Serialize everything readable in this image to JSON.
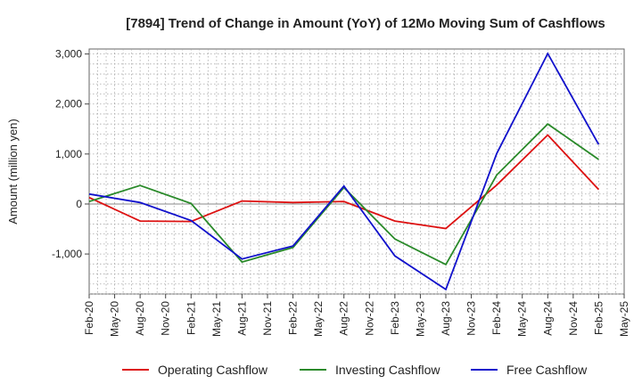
{
  "chart_data": {
    "type": "line",
    "title": "[7894]  Trend of Change in Amount (YoY) of 12Mo Moving Sum of Cashflows",
    "ylabel": "Amount (million yen)",
    "xlabel": "",
    "ylim": [
      -1800,
      3100
    ],
    "yticks": [
      3000,
      2000,
      1000,
      0,
      -1000
    ],
    "ytick_labels": [
      "3,000",
      "2,000",
      "1,000",
      "0",
      "-1,000"
    ],
    "categories": [
      "Feb-20",
      "May-20",
      "Aug-20",
      "Nov-20",
      "Feb-21",
      "May-21",
      "Aug-21",
      "Nov-21",
      "Feb-22",
      "May-22",
      "Aug-22",
      "Nov-22",
      "Feb-23",
      "May-23",
      "Aug-23",
      "Nov-23",
      "Feb-24",
      "May-24",
      "Aug-24",
      "Nov-24",
      "Feb-25",
      "May-25"
    ],
    "grid": true,
    "legend_position": "bottom",
    "series": [
      {
        "name": "Operating Cashflow",
        "color": "#dd1111",
        "values": [
          130,
          null,
          -340,
          null,
          -350,
          null,
          60,
          null,
          30,
          null,
          50,
          null,
          -340,
          null,
          -490,
          null,
          380,
          null,
          1380,
          null,
          290,
          null
        ]
      },
      {
        "name": "Investing Cashflow",
        "color": "#2a8a2a",
        "values": [
          50,
          null,
          370,
          null,
          10,
          null,
          -1160,
          null,
          -870,
          null,
          330,
          null,
          -700,
          null,
          -1210,
          null,
          580,
          null,
          1600,
          null,
          890,
          null
        ]
      },
      {
        "name": "Free Cashflow",
        "color": "#1111cc",
        "values": [
          200,
          null,
          30,
          null,
          -330,
          null,
          -1100,
          null,
          -840,
          null,
          360,
          null,
          -1040,
          null,
          -1710,
          null,
          1010,
          null,
          3010,
          null,
          1190,
          null
        ]
      }
    ]
  }
}
